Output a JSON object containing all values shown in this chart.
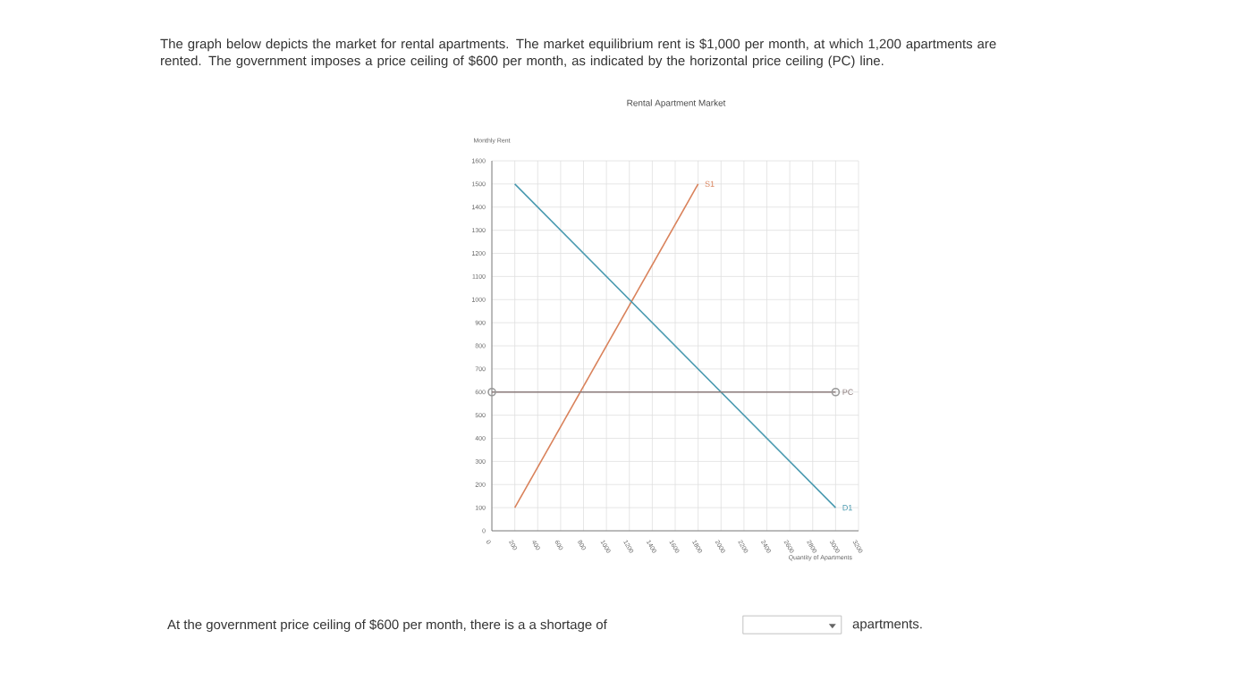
{
  "chart_data": {
    "type": "line",
    "title": "Rental Apartment Market",
    "xlabel": "Quantity of Apartments",
    "ylabel": "Monthly Rent",
    "annotations": [
      "The graph below depicts the market for rental apartments. The market equilibrium rent is $1,000 per month, at which 1,200 apartments are rented. The government imposes a price ceiling of $600 per month, as indicated by the horizontal price ceiling (PC) line.",
      "At the government price ceiling of $600 per month, there is a a shortage of",
      "apartments."
    ],
    "series": [
      {
        "name": "S1",
        "color": "#d9825b",
        "x": [
          200,
          1800
        ],
        "values": [
          100,
          1500
        ],
        "marker": "none"
      },
      {
        "name": "D1",
        "color": "#4a9ab0",
        "x": [
          200,
          3000
        ],
        "values": [
          1500,
          100
        ],
        "marker": "none"
      },
      {
        "name": "PC",
        "color": "#8a7a7a",
        "x": [
          0,
          3000
        ],
        "values": [
          600,
          600
        ],
        "marker": "circle"
      }
    ],
    "xlim": [
      0,
      3200
    ],
    "xticks": [
      0,
      200,
      400,
      600,
      800,
      1000,
      1200,
      1400,
      1600,
      1800,
      2000,
      2200,
      2400,
      2600,
      2800,
      3000,
      3200
    ],
    "ylim": [
      0,
      1600
    ],
    "yticks": [
      0,
      100,
      200,
      300,
      400,
      500,
      600,
      700,
      800,
      900,
      1000,
      1100,
      1200,
      1300,
      1400,
      1500,
      1600
    ],
    "grid": true,
    "legend": false,
    "line_style": "solid"
  }
}
